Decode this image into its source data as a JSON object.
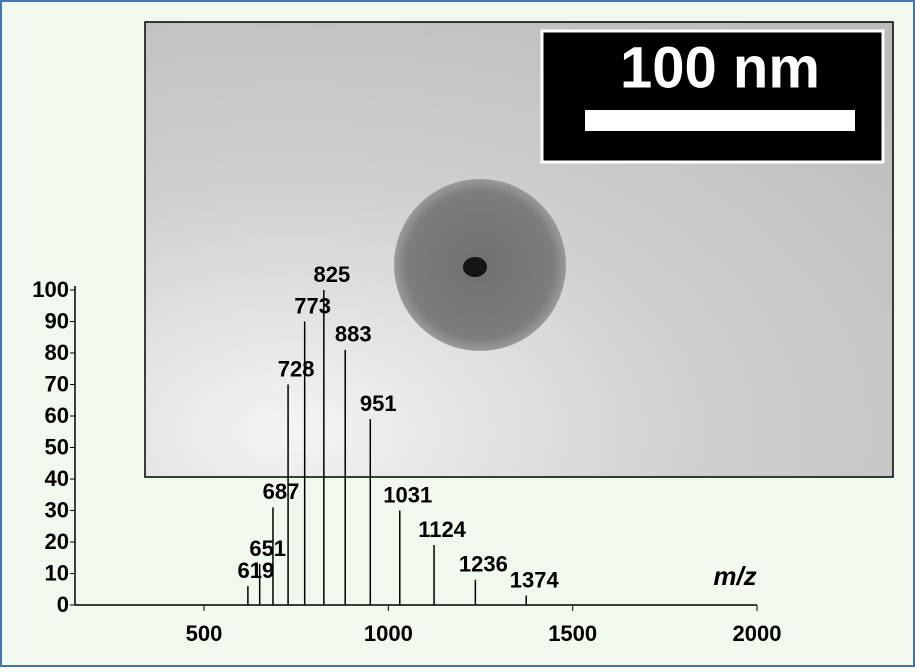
{
  "chart_data": {
    "type": "stem",
    "x_label": "m/z",
    "annotations": [
      "100 nm"
    ],
    "x": [
      619,
      651,
      687,
      728,
      773,
      825,
      883,
      951,
      1031,
      1124,
      1236,
      1374
    ],
    "values": [
      6,
      13,
      31,
      70,
      90,
      100,
      81,
      59,
      30,
      19,
      8,
      3
    ],
    "color": "#000000",
    "xlim": [
      150,
      2000
    ],
    "xticks": [
      500,
      1000,
      1500,
      2000
    ],
    "ylim": [
      0,
      100
    ],
    "yticks": [
      0,
      10,
      20,
      30,
      40,
      50,
      60,
      70,
      80,
      90,
      100
    ]
  }
}
